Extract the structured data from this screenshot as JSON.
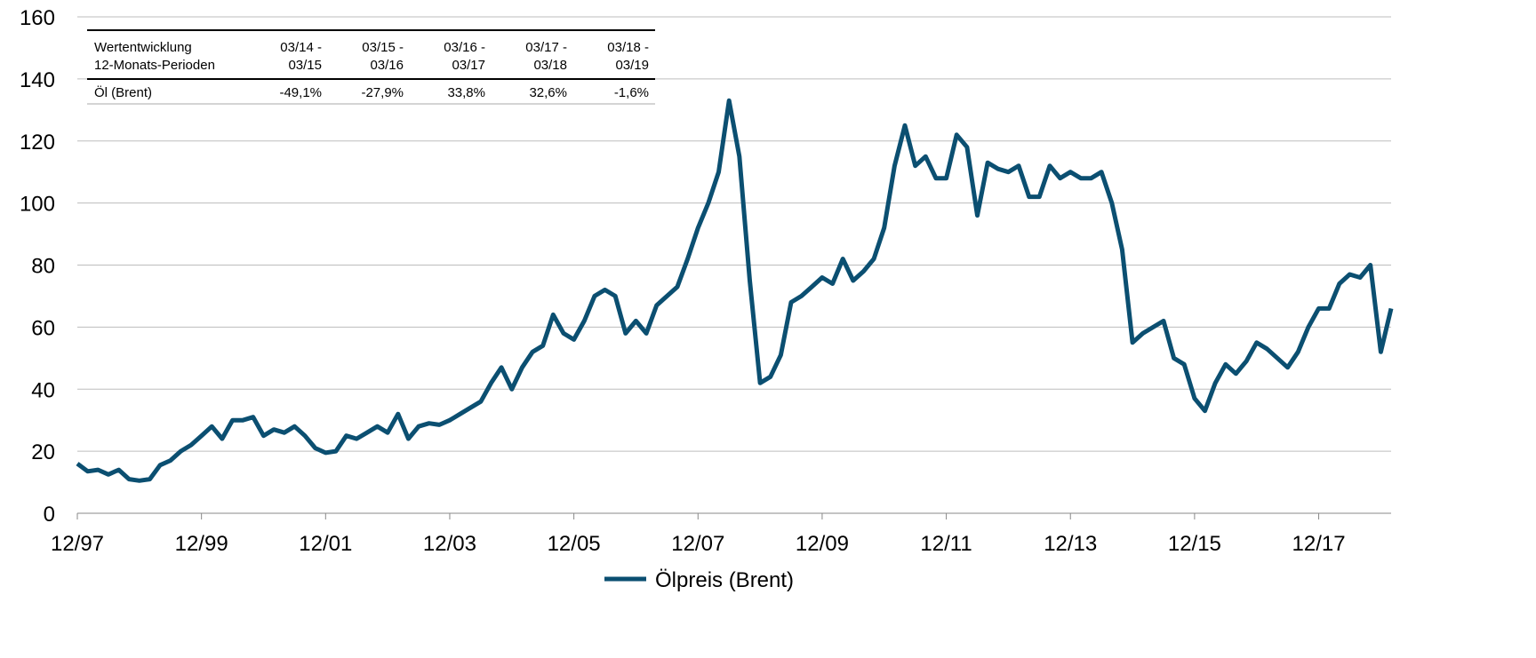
{
  "chart_data": {
    "type": "line",
    "categories": [
      "12/97",
      null,
      null,
      null,
      null,
      null,
      null,
      null,
      null,
      null,
      null,
      null,
      "12/99",
      null,
      null,
      null,
      null,
      null,
      null,
      null,
      null,
      null,
      null,
      null,
      "12/01",
      null,
      null,
      null,
      null,
      null,
      null,
      null,
      null,
      null,
      null,
      null,
      "12/03",
      null,
      null,
      null,
      null,
      null,
      null,
      null,
      null,
      null,
      null,
      null,
      "12/05",
      null,
      null,
      null,
      null,
      null,
      null,
      null,
      null,
      null,
      null,
      null,
      "12/07",
      null,
      null,
      null,
      null,
      null,
      null,
      null,
      null,
      null,
      null,
      null,
      "12/09",
      null,
      null,
      null,
      null,
      null,
      null,
      null,
      null,
      null,
      null,
      null,
      "12/11",
      null,
      null,
      null,
      null,
      null,
      null,
      null,
      null,
      null,
      null,
      null,
      "12/13",
      null,
      null,
      null,
      null,
      null,
      null,
      null,
      null,
      null,
      null,
      null,
      "12/15",
      null,
      null,
      null,
      null,
      null,
      null,
      null,
      null,
      null,
      null,
      null,
      "12/17",
      null,
      null,
      null,
      null,
      null,
      null,
      null
    ],
    "series": [
      {
        "name": "Ölpreis (Brent)",
        "color": "#0b4f71",
        "values": [
          16,
          13.5,
          14,
          12.5,
          14,
          11,
          10.5,
          11,
          15.5,
          17,
          20,
          22,
          25,
          28,
          24,
          30,
          30,
          31,
          25,
          27,
          26,
          28,
          25,
          21,
          19.5,
          20,
          25,
          24,
          26,
          28,
          26,
          32,
          24,
          28,
          29,
          28.5,
          30,
          32,
          34,
          36,
          42,
          47,
          40,
          47,
          52,
          54,
          64,
          58,
          56,
          62,
          70,
          72,
          70,
          58,
          62,
          58,
          67,
          70,
          73,
          82,
          92,
          100,
          110,
          133,
          115,
          75,
          42,
          44,
          51,
          68,
          70,
          73,
          76,
          74,
          82,
          75,
          78,
          82,
          92,
          112,
          125,
          112,
          115,
          108,
          108,
          122,
          118,
          96,
          113,
          111,
          110,
          112,
          102,
          102,
          112,
          108,
          110,
          108,
          108,
          110,
          100,
          85,
          55,
          58,
          60,
          62,
          50,
          48,
          37,
          33,
          42,
          48,
          45,
          49,
          55,
          53,
          50,
          47,
          52,
          60,
          66,
          66,
          74,
          77,
          76,
          80,
          52,
          66
        ]
      }
    ],
    "ylim": [
      0,
      160
    ],
    "yticks": [
      0,
      20,
      40,
      60,
      80,
      100,
      120,
      140,
      160
    ],
    "grid": true,
    "legend": "bottom"
  },
  "table": {
    "header": [
      [
        "Wertentwicklung",
        "12-Monats-Perioden"
      ],
      [
        "03/14 -",
        "03/15"
      ],
      [
        "03/15 -",
        "03/16"
      ],
      [
        "03/16 -",
        "03/17"
      ],
      [
        "03/17 -",
        "03/18"
      ],
      [
        "03/18 -",
        "03/19"
      ]
    ],
    "rows": [
      [
        "Öl (Brent)",
        "-49,1%",
        "-27,9%",
        "33,8%",
        "32,6%",
        "-1,6%"
      ]
    ]
  }
}
